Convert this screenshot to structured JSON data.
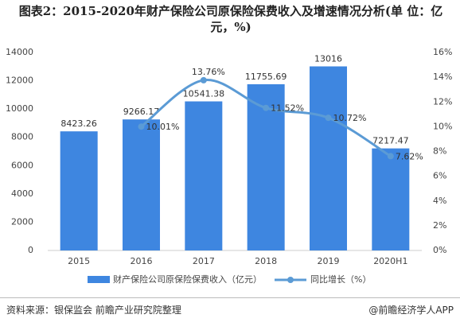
{
  "chart_data": {
    "type": "bar_line",
    "title": "图表2：2015-2020年财产保险公司原保险保费收入及增速情况分析(单 位：亿元，%)",
    "categories": [
      "2015",
      "2016",
      "2017",
      "2018",
      "2019",
      "2020H1"
    ],
    "series": [
      {
        "name": "财产保险公司原保险保费收入（亿元）",
        "color": "#3e86e0",
        "type": "bar",
        "values": [
          8423.26,
          9266.17,
          10541.38,
          11755.69,
          13016,
          7217.47
        ]
      },
      {
        "name": "同比增长（%）",
        "color": "#5b9bd5",
        "type": "line",
        "axis": "y2",
        "values": [
          null,
          10.01,
          13.76,
          11.52,
          10.72,
          7.62
        ],
        "value_labels": [
          null,
          "10.01%",
          "13.76%",
          "11.52%",
          "10.72%",
          "7.62%"
        ]
      }
    ],
    "ylim": [
      0,
      14000
    ],
    "yticks": [
      0,
      2000,
      4000,
      6000,
      8000,
      10000,
      12000,
      14000
    ],
    "y2lim": [
      0,
      16
    ],
    "y2ticks": [
      {
        "value": 0,
        "label": "0%"
      },
      {
        "value": 2,
        "label": "2%"
      },
      {
        "value": 4,
        "label": "4%"
      },
      {
        "value": 6,
        "label": "6%"
      },
      {
        "value": 8,
        "label": "8%"
      },
      {
        "value": 10,
        "label": "10%"
      },
      {
        "value": 12,
        "label": "12%"
      },
      {
        "value": 14,
        "label": "14%"
      },
      {
        "value": 16,
        "label": "16%"
      }
    ],
    "source": "资料来源：银保监会 前瞻产业研究院整理",
    "credit": "@前瞻经济学人APP"
  }
}
